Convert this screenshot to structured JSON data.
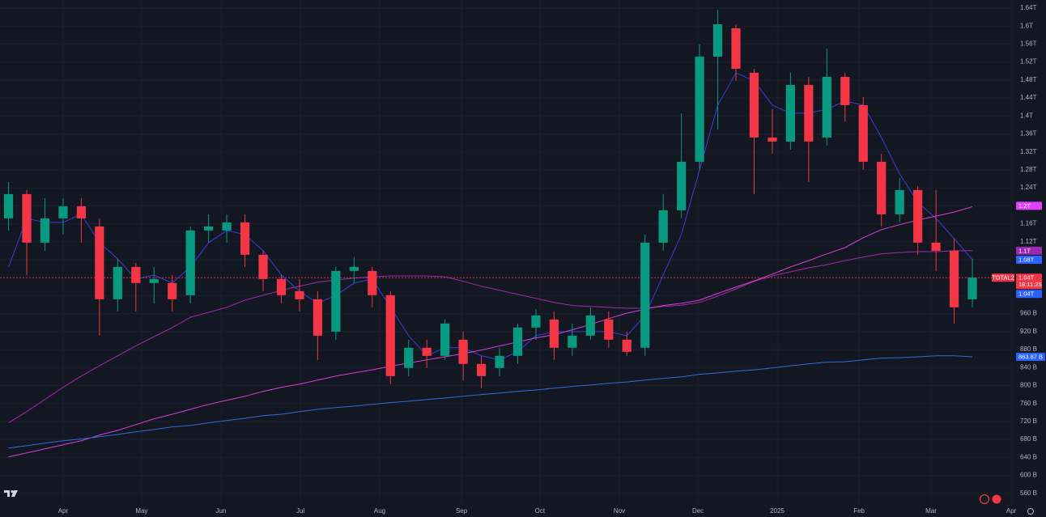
{
  "chart_data": {
    "type": "candlestick",
    "categories": [
      null,
      null,
      null,
      null,
      null,
      null,
      null,
      null,
      null,
      null,
      null,
      null,
      null,
      null,
      null,
      null,
      null,
      null,
      null,
      null,
      null,
      null,
      null,
      null,
      null,
      null,
      null,
      null,
      null,
      null,
      null,
      null,
      null,
      null,
      null,
      null,
      null,
      null,
      null,
      null,
      null,
      null,
      null,
      null,
      null,
      null,
      null,
      null,
      null,
      null,
      null,
      null,
      null,
      null
    ],
    "open": [
      1172,
      1226,
      1118,
      1172,
      1199,
      1154,
      992,
      1064,
      1028,
      1028,
      1001,
      1145,
      1145,
      1163,
      1091,
      1037,
      1010,
      992,
      920,
      1055,
      1055,
      1001,
      839,
      884,
      866,
      902,
      848,
      839,
      866,
      929,
      947,
      884,
      911,
      947,
      902,
      884,
      1118,
      1190,
      1298,
      1532,
      1595,
      1496,
      1352,
      1343,
      1469,
      1352,
      1487,
      1424,
      1298,
      1181,
      1235,
      1118,
      1100,
      992
    ],
    "high": [
      1253,
      1235,
      1217,
      1217,
      1217,
      1172,
      1082,
      1073,
      1064,
      1046,
      1154,
      1181,
      1181,
      1181,
      1100,
      1046,
      1037,
      1010,
      1064,
      1086,
      1064,
      1010,
      902,
      902,
      947,
      920,
      866,
      884,
      938,
      970,
      965,
      938,
      974,
      965,
      920,
      1136,
      1226,
      1406,
      1559,
      1636,
      1604,
      1505,
      1415,
      1496,
      1487,
      1550,
      1496,
      1442,
      1316,
      1262,
      1244,
      1235,
      1127,
      1082
    ],
    "low": [
      1145,
      1046,
      1100,
      1136,
      1118,
      911,
      965,
      965,
      983,
      965,
      983,
      1118,
      1118,
      1064,
      1010,
      983,
      965,
      857,
      902,
      1028,
      974,
      803,
      821,
      839,
      857,
      812,
      794,
      821,
      848,
      902,
      857,
      866,
      902,
      884,
      866,
      866,
      1100,
      1172,
      1280,
      1370,
      1478,
      1226,
      1316,
      1325,
      1253,
      1334,
      1388,
      1280,
      1154,
      1163,
      1091,
      1055,
      938,
      974
    ],
    "close": [
      1226,
      1118,
      1172,
      1199,
      1172,
      992,
      1064,
      1028,
      1037,
      992,
      1145,
      1154,
      1163,
      1091,
      1037,
      1001,
      992,
      911,
      1055,
      1064,
      1001,
      821,
      884,
      866,
      938,
      848,
      821,
      866,
      929,
      956,
      884,
      911,
      956,
      902,
      875,
      1118,
      1190,
      1298,
      1532,
      1604,
      1505,
      1352,
      1343,
      1469,
      1343,
      1487,
      1424,
      1298,
      1181,
      1235,
      1118,
      1100,
      974,
      1040
    ],
    "up_color": "#089981",
    "down_color": "#f23645",
    "series": [
      {
        "color": "#3b3be0",
        "values": [
          1064,
          1172,
          1163,
          1163,
          1181,
          1118,
          1082,
          1037,
          1046,
          1028,
          1064,
          1118,
          1145,
          1136,
          1100,
          1046,
          1010,
          983,
          1001,
          1028,
          1037,
          974,
          911,
          866,
          884,
          884,
          866,
          857,
          875,
          911,
          920,
          920,
          920,
          920,
          911,
          956,
          1046,
          1136,
          1280,
          1424,
          1496,
          1478,
          1424,
          1406,
          1406,
          1415,
          1433,
          1424,
          1352,
          1271,
          1208,
          1172,
          1127,
          1080
        ]
      },
      {
        "color": "#a12aa8",
        "values": [
          717,
          742,
          769,
          796,
          821,
          844,
          866,
          888,
          909,
          929,
          952,
          963,
          974,
          990,
          1001,
          1012,
          1021,
          1030,
          1035,
          1039,
          1042,
          1044,
          1044,
          1044,
          1042,
          1032,
          1021,
          1012,
          1003,
          994,
          985,
          978,
          976,
          974,
          972,
          972,
          976,
          979,
          985,
          999,
          1015,
          1032,
          1044,
          1053,
          1062,
          1069,
          1078,
          1086,
          1093,
          1096,
          1098,
          1098,
          1100,
          1100
        ]
      },
      {
        "color": "#d93fd6",
        "values": [
          641,
          650,
          659,
          668,
          677,
          690,
          700,
          713,
          726,
          736,
          747,
          758,
          767,
          776,
          787,
          796,
          803,
          812,
          821,
          828,
          835,
          843,
          850,
          857,
          864,
          871,
          879,
          888,
          897,
          906,
          913,
          924,
          936,
          949,
          961,
          970,
          978,
          983,
          990,
          1005,
          1019,
          1033,
          1048,
          1064,
          1078,
          1093,
          1107,
          1129,
          1147,
          1158,
          1168,
          1177,
          1186,
          1198
        ]
      },
      {
        "color": "#2f6be0",
        "values": [
          661,
          666,
          672,
          677,
          681,
          686,
          691,
          697,
          702,
          708,
          711,
          717,
          722,
          727,
          733,
          736,
          742,
          747,
          751,
          754,
          758,
          762,
          765,
          769,
          772,
          776,
          780,
          783,
          787,
          790,
          794,
          798,
          801,
          805,
          808,
          812,
          816,
          819,
          825,
          828,
          832,
          835,
          839,
          844,
          848,
          852,
          853,
          857,
          861,
          862,
          864,
          866,
          866,
          863.87
        ]
      }
    ],
    "xlim": [
      -0.47,
      55.18
    ],
    "xticks": [
      {
        "value": 3.0,
        "label": "Apr"
      },
      {
        "value": 7.32,
        "label": "May"
      },
      {
        "value": 11.68,
        "label": "Jun"
      },
      {
        "value": 16.05,
        "label": "Jul"
      },
      {
        "value": 20.41,
        "label": "Aug"
      },
      {
        "value": 24.91,
        "label": "Sep"
      },
      {
        "value": 29.22,
        "label": "Oct"
      },
      {
        "value": 33.59,
        "label": "Nov"
      },
      {
        "value": 37.91,
        "label": "Dec"
      },
      {
        "value": 42.27,
        "label": "2025"
      },
      {
        "value": 46.77,
        "label": "Feb"
      },
      {
        "value": 50.73,
        "label": "Mar"
      },
      {
        "value": 55.14,
        "label": "Apr"
      }
    ],
    "ylim": [
      538,
      1658
    ],
    "yticks": [
      {
        "value": 560,
        "label": "560 B"
      },
      {
        "value": 600,
        "label": "600 B"
      },
      {
        "value": 640,
        "label": "640 B"
      },
      {
        "value": 680,
        "label": "680 B"
      },
      {
        "value": 720,
        "label": "720 B"
      },
      {
        "value": 760,
        "label": "760 B"
      },
      {
        "value": 800,
        "label": "800 B"
      },
      {
        "value": 840,
        "label": "840 B"
      },
      {
        "value": 880,
        "label": "880 B"
      },
      {
        "value": 920,
        "label": "920 B"
      },
      {
        "value": 960,
        "label": "960 B"
      },
      {
        "value": 1000,
        "label": "1T"
      },
      {
        "value": 1040,
        "label": "1.04T"
      },
      {
        "value": 1080,
        "label": "1.08T"
      },
      {
        "value": 1120,
        "label": "1.12T"
      },
      {
        "value": 1160,
        "label": "1.16T"
      },
      {
        "value": 1200,
        "label": "1.2T"
      },
      {
        "value": 1240,
        "label": "1.24T"
      },
      {
        "value": 1280,
        "label": "1.28T"
      },
      {
        "value": 1320,
        "label": "1.32T"
      },
      {
        "value": 1360,
        "label": "1.36T"
      },
      {
        "value": 1400,
        "label": "1.4T"
      },
      {
        "value": 1440,
        "label": "1.44T"
      },
      {
        "value": 1480,
        "label": "1.48T"
      },
      {
        "value": 1520,
        "label": "1.52T"
      },
      {
        "value": 1560,
        "label": "1.56T"
      },
      {
        "value": 1600,
        "label": "1.6T"
      },
      {
        "value": 1640,
        "label": "1.64T"
      }
    ],
    "grid": true,
    "price_badges": [
      {
        "value": 1200,
        "label": "1.2T",
        "color": "#e040fb"
      },
      {
        "value": 1100,
        "label": "1.1T",
        "color": "#9c27b0"
      },
      {
        "value": 1080,
        "label": "1.08T",
        "color": "#2962ff"
      },
      {
        "value": 1040,
        "label": "1.04T",
        "color": "#f23645",
        "symbol": "TOTAL2",
        "countdown": "18:11:25"
      },
      {
        "value": 1040,
        "label": "1.04T",
        "color": "#2962ff"
      },
      {
        "value": 863.87,
        "label": "863.87 B",
        "color": "#2962ff"
      }
    ]
  }
}
